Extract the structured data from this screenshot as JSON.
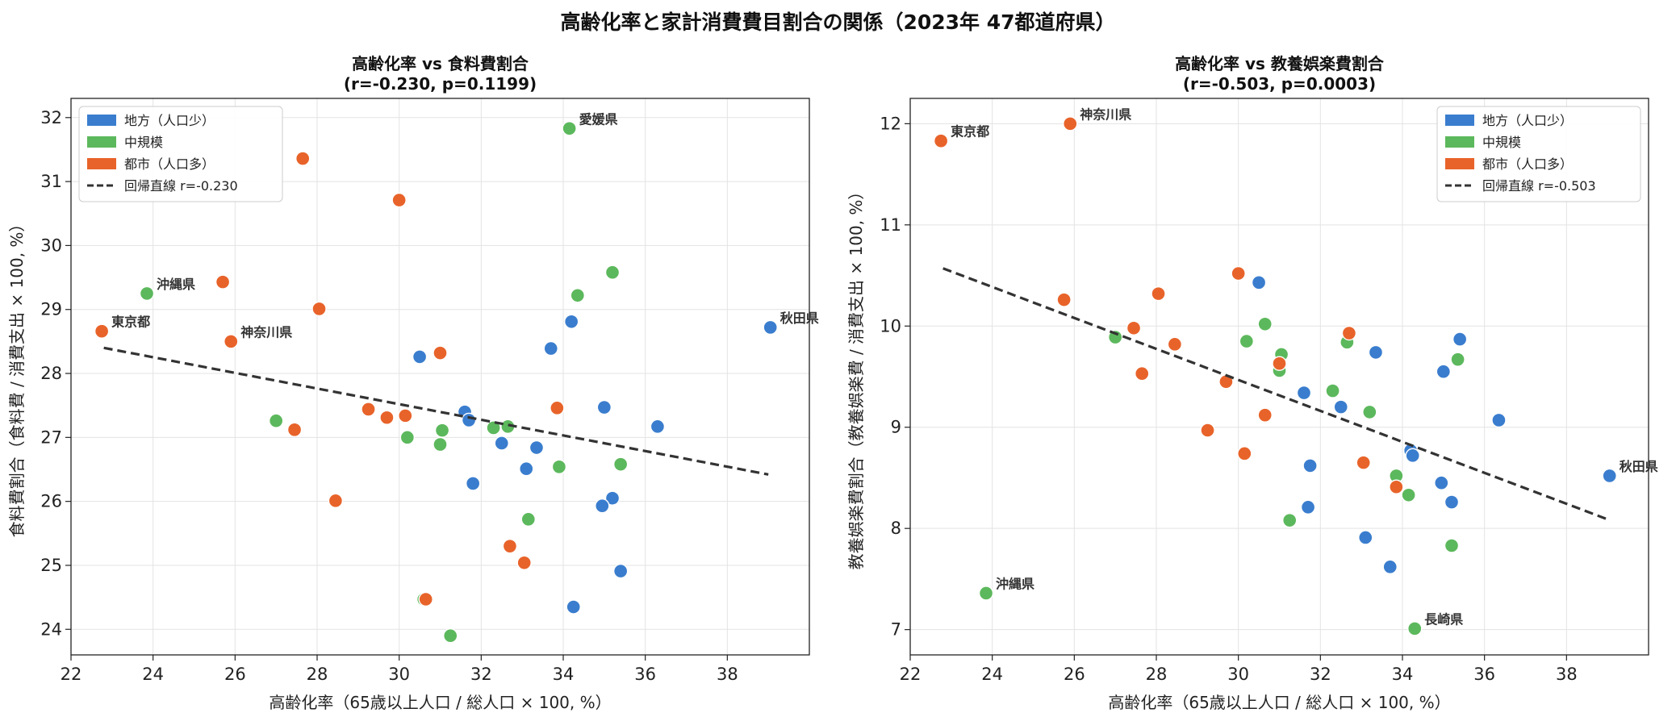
{
  "figure": {
    "title": "高齢化率と家計消費費目割合の関係（2023年 47都道府県）"
  },
  "colors": {
    "rural": "#3a7dce",
    "medium": "#5cb85c",
    "urban": "#e8632a",
    "regression": "#333333"
  },
  "legend": {
    "rural": "地方（人口少）",
    "medium": "中規模",
    "urban": "都市（人口多）"
  },
  "chart_data": [
    {
      "type": "scatter",
      "title": "高齢化率 vs 食料費割合",
      "subtitle": "(r=-0.230, p=0.1199)",
      "xlabel": "高齢化率（65歳以上人口 / 総人口 × 100, %）",
      "ylabel": "食料費割合（食料費 / 消費支出 × 100, %）",
      "xlim": [
        22,
        40
      ],
      "ylim": [
        23.6,
        32.3
      ],
      "xticks": [
        22,
        24,
        26,
        28,
        30,
        32,
        34,
        36,
        38
      ],
      "yticks": [
        24,
        25,
        26,
        27,
        28,
        29,
        30,
        31,
        32
      ],
      "grid": true,
      "legend_position": "top-left",
      "regression": {
        "label": "回帰直線 r=-0.230",
        "x": [
          22.8,
          39.0
        ],
        "y": [
          28.4,
          26.42
        ]
      },
      "annotations": [
        {
          "text": "愛媛県",
          "x": 34.15,
          "y": 31.83
        },
        {
          "text": "沖縄県",
          "x": 23.85,
          "y": 29.25
        },
        {
          "text": "東京都",
          "x": 22.75,
          "y": 28.66
        },
        {
          "text": "神奈川県",
          "x": 25.9,
          "y": 28.5
        },
        {
          "text": "秋田県",
          "x": 39.05,
          "y": 28.72
        }
      ],
      "series": [
        {
          "name": "地方（人口少）",
          "group": "rural",
          "points": [
            [
              39.05,
              28.72
            ],
            [
              36.3,
              27.17
            ],
            [
              35.0,
              27.47
            ],
            [
              35.2,
              26.05
            ],
            [
              34.95,
              25.93
            ],
            [
              35.4,
              24.91
            ],
            [
              34.2,
              28.81
            ],
            [
              34.25,
              24.35
            ],
            [
              33.7,
              28.39
            ],
            [
              33.35,
              26.84
            ],
            [
              33.1,
              26.51
            ],
            [
              32.5,
              26.91
            ],
            [
              31.6,
              27.4
            ],
            [
              31.7,
              27.27
            ],
            [
              31.8,
              26.28
            ],
            [
              30.5,
              28.26
            ]
          ]
        },
        {
          "name": "中規模",
          "group": "medium",
          "points": [
            [
              34.15,
              31.83
            ],
            [
              35.2,
              29.58
            ],
            [
              34.35,
              29.22
            ],
            [
              35.4,
              26.58
            ],
            [
              33.9,
              26.54
            ],
            [
              33.15,
              25.72
            ],
            [
              32.65,
              27.17
            ],
            [
              32.3,
              27.15
            ],
            [
              31.05,
              27.11
            ],
            [
              31.0,
              26.89
            ],
            [
              30.2,
              27.0
            ],
            [
              30.6,
              24.47
            ],
            [
              31.25,
              23.9
            ],
            [
              27.0,
              27.26
            ],
            [
              23.85,
              29.25
            ]
          ]
        },
        {
          "name": "都市（人口多）",
          "group": "urban",
          "points": [
            [
              22.75,
              28.66
            ],
            [
              25.9,
              28.5
            ],
            [
              25.7,
              29.43
            ],
            [
              27.65,
              31.36
            ],
            [
              28.05,
              29.01
            ],
            [
              30.0,
              30.71
            ],
            [
              31.0,
              28.32
            ],
            [
              29.25,
              27.44
            ],
            [
              29.7,
              27.31
            ],
            [
              30.15,
              27.34
            ],
            [
              27.45,
              27.12
            ],
            [
              28.45,
              26.01
            ],
            [
              32.7,
              25.3
            ],
            [
              33.05,
              25.04
            ],
            [
              33.85,
              27.46
            ],
            [
              30.65,
              24.47
            ]
          ]
        }
      ]
    },
    {
      "type": "scatter",
      "title": "高齢化率 vs 教養娯楽費割合",
      "subtitle": "(r=-0.503, p=0.0003)",
      "xlabel": "高齢化率（65歳以上人口 / 総人口 × 100, %）",
      "ylabel": "教養娯楽費割合（教養娯楽費 / 消費支出 × 100, %）",
      "xlim": [
        22,
        40
      ],
      "ylim": [
        6.75,
        12.25
      ],
      "xticks": [
        22,
        24,
        26,
        28,
        30,
        32,
        34,
        36,
        38
      ],
      "yticks": [
        7,
        8,
        9,
        10,
        11,
        12
      ],
      "grid": true,
      "legend_position": "top-right",
      "regression": {
        "label": "回帰直線 r=-0.503",
        "x": [
          22.8,
          39.0
        ],
        "y": [
          10.57,
          8.09
        ]
      },
      "annotations": [
        {
          "text": "東京都",
          "x": 22.75,
          "y": 11.83
        },
        {
          "text": "神奈川県",
          "x": 25.9,
          "y": 12.0
        },
        {
          "text": "沖縄県",
          "x": 23.85,
          "y": 7.36
        },
        {
          "text": "長崎県",
          "x": 34.3,
          "y": 7.01
        },
        {
          "text": "秋田県",
          "x": 39.05,
          "y": 8.52
        }
      ],
      "series": [
        {
          "name": "地方（人口少）",
          "group": "rural",
          "points": [
            [
              39.05,
              8.52
            ],
            [
              36.35,
              9.07
            ],
            [
              35.4,
              9.87
            ],
            [
              35.0,
              9.55
            ],
            [
              35.2,
              8.26
            ],
            [
              34.95,
              8.45
            ],
            [
              34.2,
              8.77
            ],
            [
              34.25,
              8.72
            ],
            [
              33.7,
              7.62
            ],
            [
              33.35,
              9.74
            ],
            [
              33.1,
              7.91
            ],
            [
              32.5,
              9.2
            ],
            [
              31.6,
              9.34
            ],
            [
              31.75,
              8.62
            ],
            [
              31.7,
              8.21
            ],
            [
              30.5,
              10.43
            ]
          ]
        },
        {
          "name": "中規模",
          "group": "medium",
          "points": [
            [
              35.35,
              9.67
            ],
            [
              35.2,
              7.83
            ],
            [
              34.3,
              7.01
            ],
            [
              34.15,
              8.33
            ],
            [
              33.85,
              8.52
            ],
            [
              33.2,
              9.15
            ],
            [
              32.65,
              9.84
            ],
            [
              32.3,
              9.36
            ],
            [
              31.05,
              9.72
            ],
            [
              31.0,
              9.56
            ],
            [
              30.65,
              10.02
            ],
            [
              30.2,
              9.85
            ],
            [
              31.25,
              8.08
            ],
            [
              27.0,
              9.89
            ],
            [
              23.85,
              7.36
            ]
          ]
        },
        {
          "name": "都市（人口多）",
          "group": "urban",
          "points": [
            [
              22.75,
              11.83
            ],
            [
              25.9,
              12.0
            ],
            [
              25.75,
              10.26
            ],
            [
              27.45,
              9.98
            ],
            [
              28.05,
              10.32
            ],
            [
              30.0,
              10.52
            ],
            [
              27.65,
              9.53
            ],
            [
              28.45,
              9.82
            ],
            [
              29.7,
              9.45
            ],
            [
              30.65,
              9.12
            ],
            [
              29.25,
              8.97
            ],
            [
              30.15,
              8.74
            ],
            [
              32.7,
              9.93
            ],
            [
              33.05,
              8.65
            ],
            [
              33.85,
              8.41
            ],
            [
              31.0,
              9.63
            ]
          ]
        }
      ]
    }
  ]
}
